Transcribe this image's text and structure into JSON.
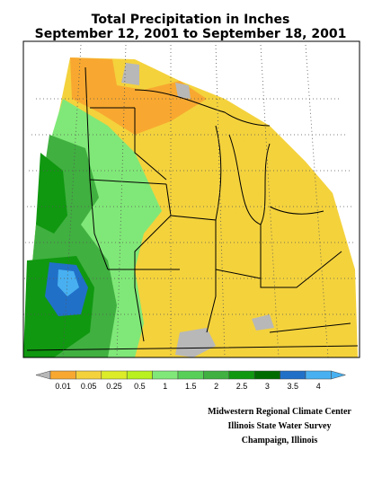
{
  "title": [
    "Total Precipitation in Inches",
    "September 12, 2001 to September 18, 2001"
  ],
  "legend": {
    "ticks": [
      0.01,
      0.05,
      0.25,
      0.5,
      1,
      1.5,
      2,
      2.5,
      3,
      3.5,
      4
    ],
    "below_color": "#b8b8b8",
    "above_color": "#48b0f0",
    "colors": [
      "#f8a830",
      "#f4d23c",
      "#dcec28",
      "#b8f020",
      "#80e878",
      "#58d058",
      "#40b040",
      "#109810",
      "#006c00",
      "#2070c8",
      "#48b0f0"
    ]
  },
  "credits": [
    "Midwestern Regional Climate Center",
    "Illinois State Water Survey",
    "Champaign, Illinois"
  ]
}
